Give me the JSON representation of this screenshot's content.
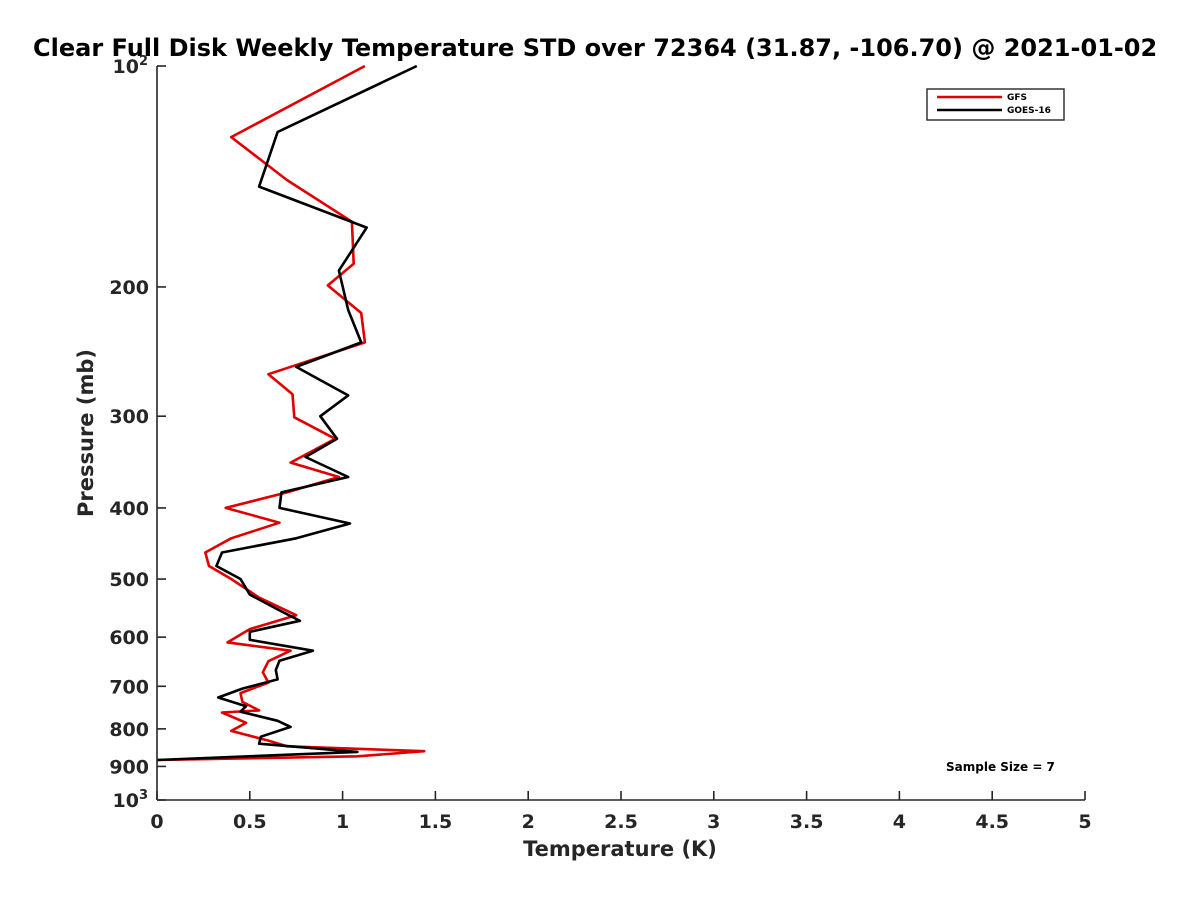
{
  "chart_data": {
    "type": "line",
    "title": "Clear Full Disk Weekly Temperature STD over 72364 (31.87, -106.70) @ 2021-01-02",
    "xlabel": "Temperature (K)",
    "ylabel": "Pressure (mb)",
    "xlim": [
      0,
      5
    ],
    "ylim": [
      100,
      1000
    ],
    "y_scale": "log",
    "y_reversed": true,
    "grid": false,
    "legend_position": "top-right",
    "x_ticks": [
      "0",
      "0.5",
      "1",
      "1.5",
      "2",
      "2.5",
      "3",
      "3.5",
      "4",
      "4.5",
      "5"
    ],
    "y_ticks": [
      {
        "value": 100,
        "label": "10",
        "sup": "2"
      },
      {
        "value": 200,
        "label": "200",
        "sup": ""
      },
      {
        "value": 300,
        "label": "300",
        "sup": ""
      },
      {
        "value": 400,
        "label": "400",
        "sup": ""
      },
      {
        "value": 500,
        "label": "500",
        "sup": ""
      },
      {
        "value": 600,
        "label": "600",
        "sup": ""
      },
      {
        "value": 700,
        "label": "700",
        "sup": ""
      },
      {
        "value": 800,
        "label": "800",
        "sup": ""
      },
      {
        "value": 900,
        "label": "900",
        "sup": ""
      },
      {
        "value": 1000,
        "label": "10",
        "sup": "3"
      }
    ],
    "annotation": "Sample Size = 7",
    "series": [
      {
        "name": "GFS",
        "color": "#e00000",
        "points": [
          [
            1.12,
            100
          ],
          [
            0.4,
            125
          ],
          [
            0.7,
            143
          ],
          [
            1.05,
            163
          ],
          [
            1.06,
            186
          ],
          [
            0.92,
            199
          ],
          [
            1.1,
            217
          ],
          [
            1.12,
            238
          ],
          [
            0.6,
            263
          ],
          [
            0.73,
            280
          ],
          [
            0.74,
            301
          ],
          [
            0.96,
            322
          ],
          [
            0.72,
            347
          ],
          [
            0.98,
            363
          ],
          [
            0.7,
            381
          ],
          [
            0.37,
            400
          ],
          [
            0.66,
            419
          ],
          [
            0.4,
            440
          ],
          [
            0.26,
            460
          ],
          [
            0.28,
            480
          ],
          [
            0.4,
            500
          ],
          [
            0.55,
            530
          ],
          [
            0.75,
            560
          ],
          [
            0.5,
            585
          ],
          [
            0.38,
            610
          ],
          [
            0.72,
            626
          ],
          [
            0.6,
            647
          ],
          [
            0.57,
            670
          ],
          [
            0.6,
            692
          ],
          [
            0.45,
            715
          ],
          [
            0.46,
            735
          ],
          [
            0.55,
            755
          ],
          [
            0.35,
            760
          ],
          [
            0.48,
            785
          ],
          [
            0.4,
            805
          ],
          [
            0.6,
            830
          ],
          [
            0.7,
            845
          ],
          [
            1.44,
            858
          ],
          [
            1.08,
            872
          ],
          [
            0.0,
            882
          ]
        ]
      },
      {
        "name": "GOES-16",
        "color": "#000000",
        "points": [
          [
            1.4,
            100
          ],
          [
            0.65,
            123
          ],
          [
            0.55,
            146
          ],
          [
            1.13,
            166
          ],
          [
            0.98,
            190
          ],
          [
            1.03,
            215
          ],
          [
            1.1,
            238
          ],
          [
            0.75,
            257
          ],
          [
            1.03,
            281
          ],
          [
            0.88,
            300
          ],
          [
            0.97,
            322
          ],
          [
            0.8,
            341
          ],
          [
            1.03,
            363
          ],
          [
            0.67,
            381
          ],
          [
            0.66,
            400
          ],
          [
            1.04,
            420
          ],
          [
            0.75,
            440
          ],
          [
            0.35,
            460
          ],
          [
            0.32,
            480
          ],
          [
            0.45,
            500
          ],
          [
            0.5,
            525
          ],
          [
            0.65,
            550
          ],
          [
            0.77,
            570
          ],
          [
            0.5,
            590
          ],
          [
            0.5,
            605
          ],
          [
            0.84,
            626
          ],
          [
            0.66,
            646
          ],
          [
            0.64,
            665
          ],
          [
            0.65,
            685
          ],
          [
            0.46,
            705
          ],
          [
            0.33,
            725
          ],
          [
            0.48,
            745
          ],
          [
            0.45,
            758
          ],
          [
            0.65,
            780
          ],
          [
            0.72,
            795
          ],
          [
            0.56,
            820
          ],
          [
            0.55,
            838
          ],
          [
            1.08,
            860
          ],
          [
            0.0,
            882
          ]
        ]
      }
    ]
  }
}
